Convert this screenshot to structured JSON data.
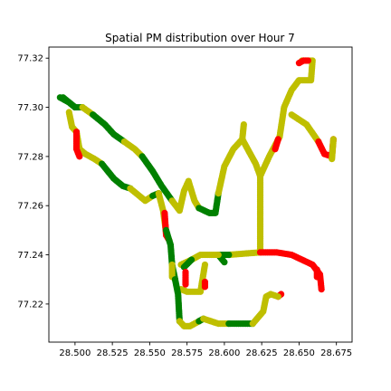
{
  "chart_data": {
    "type": "scatter",
    "title": "Spatial PM distribution over Hour 7",
    "xlabel": "",
    "ylabel": "",
    "xlim": [
      28.4825,
      28.6855
    ],
    "ylim": [
      77.2045,
      77.3245
    ],
    "xticks": [
      28.5,
      28.525,
      28.55,
      28.575,
      28.6,
      28.625,
      28.65,
      28.675
    ],
    "yticks": [
      77.22,
      77.24,
      77.26,
      77.28,
      77.3,
      77.32
    ],
    "xtick_labels": [
      "28.500",
      "28.525",
      "28.550",
      "28.575",
      "28.600",
      "28.625",
      "28.650",
      "28.675"
    ],
    "ytick_labels": [
      "77.22",
      "77.24",
      "77.26",
      "77.28",
      "77.30",
      "77.32"
    ],
    "grid": false,
    "colors": {
      "green": "#008000",
      "yellow": "#bfbf00",
      "red": "#ff0000"
    },
    "tracks": [
      {
        "color": "green",
        "points": [
          [
            28.49,
            77.304
          ],
          [
            28.496,
            77.302
          ],
          [
            28.5,
            77.3
          ],
          [
            28.505,
            77.3
          ]
        ]
      },
      {
        "color": "yellow",
        "points": [
          [
            28.505,
            77.3
          ],
          [
            28.512,
            77.297
          ]
        ]
      },
      {
        "color": "green",
        "points": [
          [
            28.512,
            77.297
          ],
          [
            28.52,
            77.293
          ],
          [
            28.526,
            77.289
          ],
          [
            28.533,
            77.286
          ]
        ]
      },
      {
        "color": "yellow",
        "points": [
          [
            28.533,
            77.286
          ],
          [
            28.54,
            77.283
          ],
          [
            28.545,
            77.28
          ]
        ]
      },
      {
        "color": "green",
        "points": [
          [
            28.545,
            77.28
          ],
          [
            28.552,
            77.274
          ],
          [
            28.558,
            77.268
          ],
          [
            28.565,
            77.262
          ]
        ]
      },
      {
        "color": "yellow",
        "points": [
          [
            28.565,
            77.262
          ],
          [
            28.57,
            77.258
          ],
          [
            28.573,
            77.266
          ],
          [
            28.576,
            77.27
          ],
          [
            28.58,
            77.262
          ],
          [
            28.583,
            77.259
          ]
        ]
      },
      {
        "color": "green",
        "points": [
          [
            28.583,
            77.259
          ],
          [
            28.59,
            77.257
          ],
          [
            28.594,
            77.257
          ],
          [
            28.596,
            77.265
          ]
        ]
      },
      {
        "color": "yellow",
        "points": [
          [
            28.596,
            77.265
          ],
          [
            28.6,
            77.276
          ],
          [
            28.606,
            77.283
          ],
          [
            28.612,
            77.287
          ],
          [
            28.613,
            77.293
          ]
        ]
      },
      {
        "color": "yellow",
        "points": [
          [
            28.612,
            77.287
          ],
          [
            28.621,
            77.277
          ],
          [
            28.624,
            77.272
          ]
        ]
      },
      {
        "color": "yellow",
        "points": [
          [
            28.624,
            77.272
          ],
          [
            28.63,
            77.28
          ],
          [
            28.637,
            77.288
          ],
          [
            28.64,
            77.3
          ],
          [
            28.645,
            77.307
          ],
          [
            28.65,
            77.311
          ],
          [
            28.658,
            77.311
          ],
          [
            28.659,
            77.319
          ],
          [
            28.652,
            77.319
          ]
        ]
      },
      {
        "color": "red",
        "points": [
          [
            28.65,
            77.318
          ],
          [
            28.653,
            77.319
          ],
          [
            28.656,
            77.319
          ]
        ]
      },
      {
        "color": "yellow",
        "points": [
          [
            28.645,
            77.297
          ],
          [
            28.655,
            77.293
          ],
          [
            28.663,
            77.286
          ]
        ]
      },
      {
        "color": "red",
        "points": [
          [
            28.663,
            77.286
          ],
          [
            28.667,
            77.281
          ],
          [
            28.672,
            77.28
          ],
          [
            28.673,
            77.287
          ]
        ]
      },
      {
        "color": "yellow",
        "points": [
          [
            28.673,
            77.287
          ],
          [
            28.672,
            77.279
          ]
        ]
      },
      {
        "color": "red",
        "points": [
          [
            28.634,
            77.283
          ],
          [
            28.636,
            77.287
          ]
        ]
      },
      {
        "color": "yellow",
        "points": [
          [
            28.624,
            77.272
          ],
          [
            28.624,
            77.241
          ]
        ]
      },
      {
        "color": "yellow",
        "points": [
          [
            28.624,
            77.241
          ],
          [
            28.603,
            77.24
          ]
        ]
      },
      {
        "color": "green",
        "points": [
          [
            28.603,
            77.24
          ],
          [
            28.596,
            77.24
          ],
          [
            28.6,
            77.237
          ]
        ]
      },
      {
        "color": "yellow",
        "points": [
          [
            28.596,
            77.24
          ],
          [
            28.584,
            77.24
          ],
          [
            28.578,
            77.238
          ],
          [
            28.571,
            77.236
          ]
        ]
      },
      {
        "color": "green",
        "points": [
          [
            28.578,
            77.238
          ],
          [
            28.573,
            77.235
          ]
        ]
      },
      {
        "color": "yellow",
        "points": [
          [
            28.587,
            77.236
          ],
          [
            28.584,
            77.225
          ],
          [
            28.575,
            77.225
          ],
          [
            28.571,
            77.226
          ]
        ]
      },
      {
        "color": "red",
        "points": [
          [
            28.574,
            77.233
          ],
          [
            28.574,
            77.228
          ]
        ]
      },
      {
        "color": "red",
        "points": [
          [
            28.587,
            77.229
          ],
          [
            28.587,
            77.227
          ]
        ]
      },
      {
        "color": "red",
        "points": [
          [
            28.624,
            77.241
          ],
          [
            28.635,
            77.241
          ],
          [
            28.645,
            77.24
          ],
          [
            28.652,
            77.238
          ],
          [
            28.659,
            77.236
          ],
          [
            28.664,
            77.232
          ],
          [
            28.665,
            77.226
          ]
        ]
      },
      {
        "color": "red",
        "points": [
          [
            28.662,
            77.234
          ],
          [
            28.662,
            77.231
          ]
        ]
      },
      {
        "color": "red",
        "points": [
          [
            28.636,
            77.223
          ],
          [
            28.638,
            77.224
          ]
        ]
      },
      {
        "color": "green",
        "points": [
          [
            28.492,
            77.304
          ],
          [
            28.498,
            77.301
          ],
          [
            28.5,
            77.3
          ]
        ]
      },
      {
        "color": "yellow",
        "points": [
          [
            28.496,
            77.298
          ],
          [
            28.498,
            77.292
          ],
          [
            28.501,
            77.29
          ],
          [
            28.503,
            77.283
          ],
          [
            28.507,
            77.281
          ],
          [
            28.513,
            77.279
          ],
          [
            28.518,
            77.277
          ]
        ]
      },
      {
        "color": "red",
        "points": [
          [
            28.501,
            77.29
          ],
          [
            28.501,
            77.283
          ],
          [
            28.503,
            77.28
          ]
        ]
      },
      {
        "color": "green",
        "points": [
          [
            28.518,
            77.277
          ],
          [
            28.526,
            77.271
          ],
          [
            28.532,
            77.268
          ],
          [
            28.537,
            77.267
          ]
        ]
      },
      {
        "color": "yellow",
        "points": [
          [
            28.537,
            77.267
          ],
          [
            28.547,
            77.262
          ],
          [
            28.552,
            77.264
          ]
        ]
      },
      {
        "color": "green",
        "points": [
          [
            28.552,
            77.264
          ],
          [
            28.556,
            77.265
          ]
        ]
      },
      {
        "color": "yellow",
        "points": [
          [
            28.556,
            77.265
          ],
          [
            28.559,
            77.258
          ],
          [
            28.561,
            77.249
          ]
        ]
      },
      {
        "color": "red",
        "points": [
          [
            28.56,
            77.257
          ],
          [
            28.561,
            77.248
          ],
          [
            28.563,
            77.246
          ]
        ]
      },
      {
        "color": "green",
        "points": [
          [
            28.561,
            77.25
          ],
          [
            28.564,
            77.244
          ],
          [
            28.565,
            77.236
          ],
          [
            28.567,
            77.23
          ]
        ]
      },
      {
        "color": "yellow",
        "points": [
          [
            28.565,
            77.236
          ],
          [
            28.565,
            77.231
          ]
        ]
      },
      {
        "color": "green",
        "points": [
          [
            28.567,
            77.23
          ],
          [
            28.569,
            77.224
          ],
          [
            28.57,
            77.213
          ]
        ]
      },
      {
        "color": "yellow",
        "points": [
          [
            28.57,
            77.213
          ],
          [
            28.573,
            77.211
          ],
          [
            28.577,
            77.211
          ],
          [
            28.583,
            77.213
          ]
        ]
      },
      {
        "color": "green",
        "points": [
          [
            28.583,
            77.213
          ],
          [
            28.586,
            77.214
          ]
        ]
      },
      {
        "color": "yellow",
        "points": [
          [
            28.586,
            77.214
          ],
          [
            28.596,
            77.212
          ],
          [
            28.603,
            77.212
          ]
        ]
      },
      {
        "color": "green",
        "points": [
          [
            28.603,
            77.212
          ],
          [
            28.612,
            77.212
          ],
          [
            28.619,
            77.212
          ]
        ]
      },
      {
        "color": "yellow",
        "points": [
          [
            28.619,
            77.212
          ],
          [
            28.626,
            77.217
          ],
          [
            28.628,
            77.223
          ],
          [
            28.631,
            77.224
          ],
          [
            28.636,
            77.223
          ]
        ]
      }
    ]
  }
}
